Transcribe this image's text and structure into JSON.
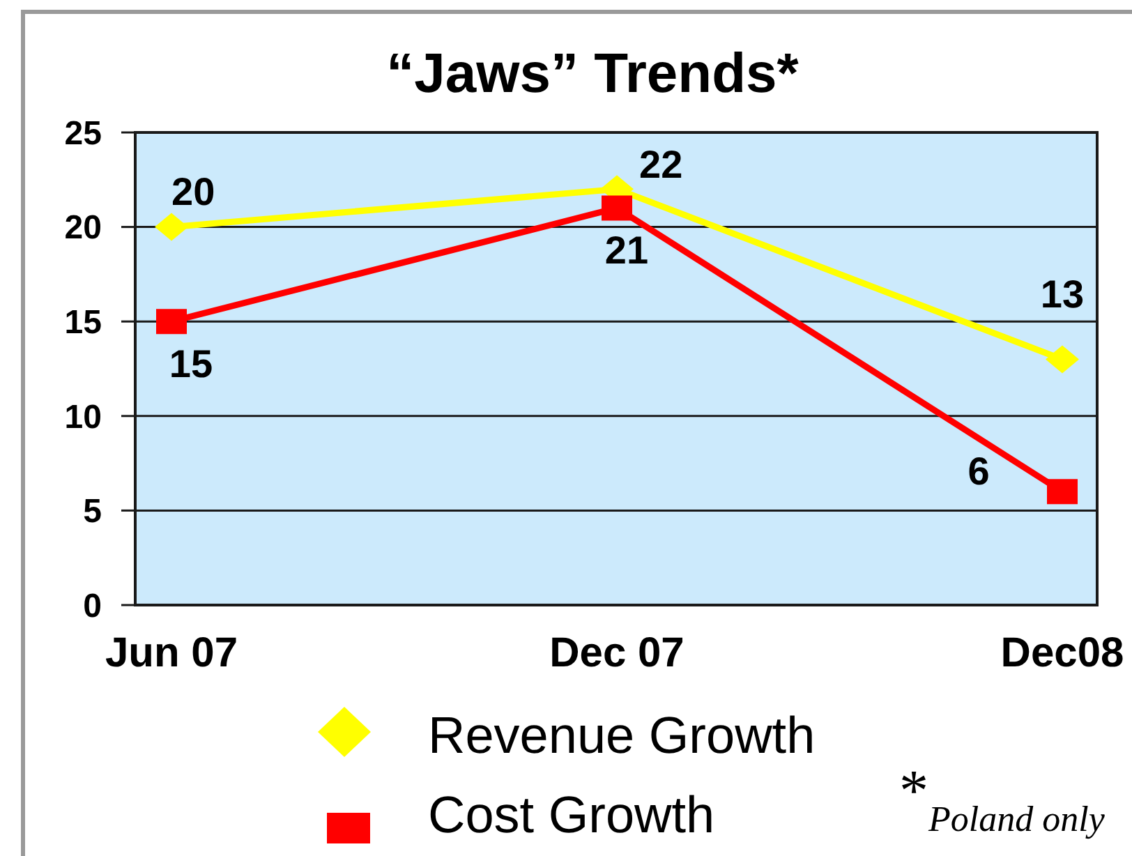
{
  "chart_data": {
    "type": "line",
    "title": "“Jaws” Trends*",
    "categories": [
      "Jun 07",
      "Dec 07",
      "Dec08"
    ],
    "series": [
      {
        "name": "Revenue Growth",
        "color": "#ffff00",
        "values": [
          20,
          22,
          13
        ],
        "marker": "diamond"
      },
      {
        "name": "Cost Growth",
        "color": "#ff0000",
        "values": [
          15,
          21,
          6
        ],
        "marker": "square"
      }
    ],
    "ylim": [
      0,
      25
    ],
    "yticks": [
      0,
      5,
      10,
      15,
      20,
      25
    ],
    "grid": "y",
    "legend": "bottom",
    "data_labels": true,
    "annotations": [
      "*$_{Poland only}$"
    ]
  }
}
